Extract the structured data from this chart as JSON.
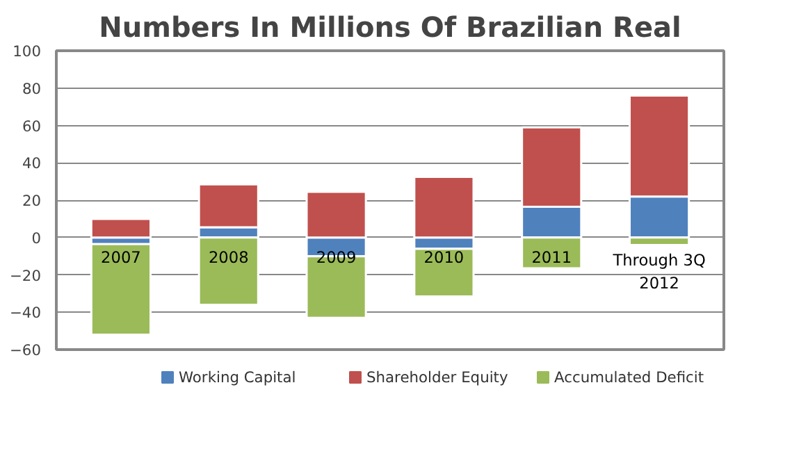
{
  "chart_data": {
    "type": "bar",
    "title": "Numbers In Millions Of Brazilian Real",
    "stacked": true,
    "categories": [
      "2007",
      "2008",
      "2009",
      "2010",
      "2011",
      "Through 3Q\n2012"
    ],
    "series": [
      {
        "name": "Working Capital",
        "color": "#4f81bd",
        "values": [
          -3.5,
          5.5,
          -10,
          -6,
          16.5,
          22
        ]
      },
      {
        "name": "Shareholder Equity",
        "color": "#c0504d",
        "values": [
          10,
          23,
          24.5,
          32.5,
          42.5,
          54
        ]
      },
      {
        "name": "Accumulated Deficit",
        "color": "#9bbb59",
        "values": [
          -48.5,
          -36,
          -33,
          -25.5,
          -16.5,
          -4
        ]
      }
    ],
    "ylim": [
      -60,
      100
    ],
    "yticks": [
      -60,
      -40,
      -20,
      0,
      20,
      40,
      60,
      80,
      100
    ],
    "grid": "y",
    "legend": "bottom"
  }
}
